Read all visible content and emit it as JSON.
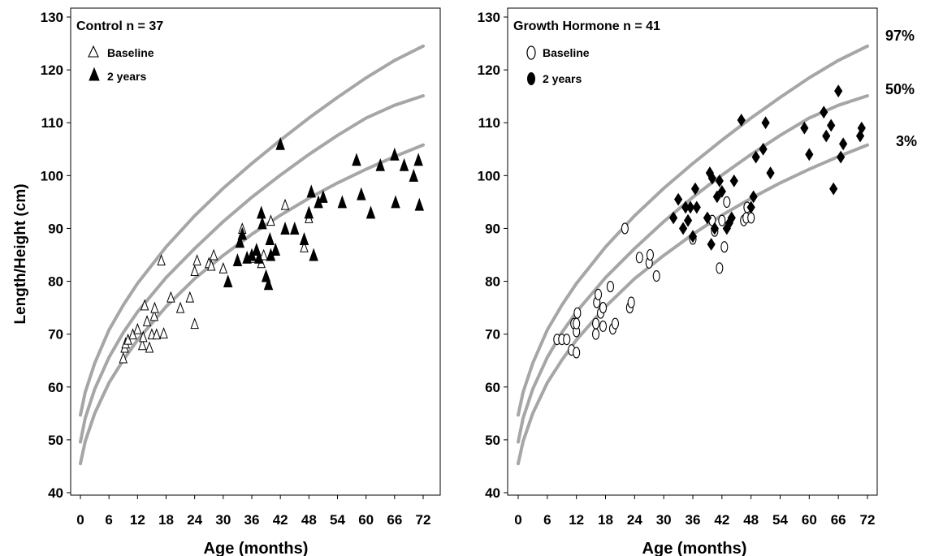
{
  "chart_data": [
    {
      "type": "scatter",
      "title": "Control n = 37",
      "xlabel": "Age (months)",
      "ylabel": "Length/Height (cm)",
      "xlim": [
        0,
        72
      ],
      "ylim": [
        40,
        130
      ],
      "xticks": [
        "0",
        "6",
        "12",
        "18",
        "24",
        "30",
        "36",
        "42",
        "48",
        "54",
        "60",
        "66",
        "72"
      ],
      "yticks": [
        "40",
        "50",
        "60",
        "70",
        "80",
        "90",
        "100",
        "110",
        "120",
        "130"
      ],
      "legend": [
        {
          "label": "Baseline",
          "marker": "open-triangle"
        },
        {
          "label": "2 years",
          "marker": "filled-triangle"
        }
      ],
      "reference_curves": [
        {
          "name": "97%",
          "x": [
            0,
            1,
            3,
            6,
            9,
            12,
            18,
            24,
            30,
            36,
            42,
            48,
            54,
            60,
            66,
            72
          ],
          "y": [
            54.7,
            59.0,
            64.5,
            70.8,
            75.5,
            79.6,
            86.5,
            92.4,
            97.6,
            102.3,
            106.7,
            110.9,
            114.8,
            118.5,
            121.8,
            124.5
          ]
        },
        {
          "name": "50%",
          "x": [
            0,
            1,
            3,
            6,
            9,
            12,
            18,
            24,
            30,
            36,
            42,
            48,
            54,
            60,
            66,
            72
          ],
          "y": [
            49.6,
            54.1,
            59.6,
            65.6,
            70.3,
            74.2,
            80.7,
            86.2,
            91.3,
            95.9,
            100.1,
            104.0,
            107.6,
            110.9,
            113.3,
            115.1
          ]
        },
        {
          "name": "3%",
          "x": [
            0,
            1,
            3,
            6,
            9,
            12,
            18,
            24,
            30,
            36,
            42,
            48,
            54,
            60,
            66,
            72
          ],
          "y": [
            45.5,
            49.7,
            55.0,
            60.8,
            65.1,
            68.9,
            75.2,
            80.5,
            84.9,
            88.9,
            92.5,
            95.7,
            98.6,
            101.2,
            103.6,
            105.8
          ]
        }
      ],
      "series": [
        {
          "name": "Baseline",
          "marker": "open-triangle",
          "points": [
            [
              9,
              65.5
            ],
            [
              9.3,
              67.5
            ],
            [
              9.5,
              68.3
            ],
            [
              10,
              69
            ],
            [
              11,
              70
            ],
            [
              12,
              71
            ],
            [
              13,
              68
            ],
            [
              13.2,
              69.5
            ],
            [
              13.5,
              75.5
            ],
            [
              14,
              72.5
            ],
            [
              14.5,
              67.5
            ],
            [
              15,
              70
            ],
            [
              15.5,
              73.5
            ],
            [
              15.6,
              75
            ],
            [
              16,
              70
            ],
            [
              17,
              84
            ],
            [
              17.5,
              70.2
            ],
            [
              19,
              77
            ],
            [
              21,
              75
            ],
            [
              23,
              77
            ],
            [
              24,
              72
            ],
            [
              24,
              82
            ],
            [
              24.5,
              84
            ],
            [
              27,
              83.5
            ],
            [
              27.5,
              83
            ],
            [
              28,
              85
            ],
            [
              30,
              82.5
            ],
            [
              34,
              90
            ],
            [
              35,
              84.5
            ],
            [
              36,
              84.5
            ],
            [
              38,
              83.5
            ],
            [
              38.5,
              85
            ],
            [
              40,
              91.5
            ],
            [
              41,
              86
            ],
            [
              43,
              94.5
            ],
            [
              47,
              86.5
            ],
            [
              48,
              92
            ]
          ]
        },
        {
          "name": "2 years",
          "marker": "filled-triangle",
          "points": [
            [
              31,
              80
            ],
            [
              33,
              84
            ],
            [
              33.5,
              87.5
            ],
            [
              34,
              89
            ],
            [
              35,
              84.5
            ],
            [
              36,
              85
            ],
            [
              37,
              86
            ],
            [
              37.5,
              84.5
            ],
            [
              38,
              93
            ],
            [
              38.2,
              91
            ],
            [
              39,
              81
            ],
            [
              39.5,
              79.5
            ],
            [
              39.8,
              88
            ],
            [
              40,
              85
            ],
            [
              41,
              86
            ],
            [
              42,
              106
            ],
            [
              43,
              90
            ],
            [
              45,
              90
            ],
            [
              47,
              88
            ],
            [
              48,
              93
            ],
            [
              48.5,
              97
            ],
            [
              49,
              85
            ],
            [
              50,
              95
            ],
            [
              51,
              96
            ],
            [
              55,
              95
            ],
            [
              58,
              103
            ],
            [
              59,
              96.5
            ],
            [
              61,
              93
            ],
            [
              63,
              102
            ],
            [
              66,
              104
            ],
            [
              66.2,
              95
            ],
            [
              68,
              102
            ],
            [
              70,
              100
            ],
            [
              71,
              103
            ],
            [
              71.2,
              94.5
            ]
          ]
        }
      ]
    },
    {
      "type": "scatter",
      "title": "Growth Hormone n = 41",
      "xlabel": "Age (months)",
      "ylabel": "",
      "xlim": [
        0,
        72
      ],
      "ylim": [
        40,
        130
      ],
      "xticks": [
        "0",
        "6",
        "12",
        "18",
        "24",
        "30",
        "36",
        "42",
        "48",
        "54",
        "60",
        "66",
        "72"
      ],
      "yticks": [
        "40",
        "50",
        "60",
        "70",
        "80",
        "90",
        "100",
        "110",
        "120",
        "130"
      ],
      "legend": [
        {
          "label": "Baseline",
          "marker": "open-ellipse"
        },
        {
          "label": "2 years",
          "marker": "filled-diamond"
        }
      ],
      "curve_labels": [
        "97%",
        "50%",
        "3%"
      ],
      "reference_curves": [
        {
          "name": "97%",
          "x": [
            0,
            1,
            3,
            6,
            9,
            12,
            18,
            24,
            30,
            36,
            42,
            48,
            54,
            60,
            66,
            72
          ],
          "y": [
            54.7,
            59.0,
            64.5,
            70.8,
            75.5,
            79.6,
            86.5,
            92.4,
            97.6,
            102.3,
            106.7,
            110.9,
            114.8,
            118.5,
            121.8,
            124.5
          ]
        },
        {
          "name": "50%",
          "x": [
            0,
            1,
            3,
            6,
            9,
            12,
            18,
            24,
            30,
            36,
            42,
            48,
            54,
            60,
            66,
            72
          ],
          "y": [
            49.6,
            54.1,
            59.6,
            65.6,
            70.3,
            74.2,
            80.7,
            86.2,
            91.3,
            95.9,
            100.1,
            104.0,
            107.6,
            110.9,
            113.3,
            115.1
          ]
        },
        {
          "name": "3%",
          "x": [
            0,
            1,
            3,
            6,
            9,
            12,
            18,
            24,
            30,
            36,
            42,
            48,
            54,
            60,
            66,
            72
          ],
          "y": [
            45.5,
            49.7,
            55.0,
            60.8,
            65.1,
            68.9,
            75.2,
            80.5,
            84.9,
            88.9,
            92.5,
            95.7,
            98.6,
            101.2,
            103.6,
            105.8
          ]
        }
      ],
      "series": [
        {
          "name": "Baseline",
          "marker": "open-ellipse",
          "points": [
            [
              8,
              69
            ],
            [
              9,
              69
            ],
            [
              10,
              69
            ],
            [
              11,
              67
            ],
            [
              11.5,
              72
            ],
            [
              12,
              70.5
            ],
            [
              12,
              72
            ],
            [
              12,
              66.5
            ],
            [
              12.2,
              74
            ],
            [
              16,
              72
            ],
            [
              16,
              70
            ],
            [
              16.2,
              76
            ],
            [
              16.5,
              77.5
            ],
            [
              17,
              74
            ],
            [
              17.5,
              75
            ],
            [
              17.5,
              71.5
            ],
            [
              19,
              79
            ],
            [
              19.5,
              71
            ],
            [
              20,
              72
            ],
            [
              22,
              90
            ],
            [
              23,
              75
            ],
            [
              23.3,
              76
            ],
            [
              25,
              84.5
            ],
            [
              27,
              83.5
            ],
            [
              27.2,
              85
            ],
            [
              28.5,
              81
            ],
            [
              36,
              88
            ],
            [
              40,
              91.5
            ],
            [
              40.5,
              89.5
            ],
            [
              41.5,
              82.5
            ],
            [
              42,
              91.5
            ],
            [
              42.5,
              86.5
            ],
            [
              43,
              95
            ],
            [
              46.5,
              91.5
            ],
            [
              47,
              92
            ],
            [
              47.2,
              94
            ],
            [
              48,
              92
            ]
          ]
        },
        {
          "name": "2 years",
          "marker": "filled-diamond",
          "points": [
            [
              32,
              92
            ],
            [
              33,
              95.5
            ],
            [
              34,
              90
            ],
            [
              34.5,
              94
            ],
            [
              35,
              91.5
            ],
            [
              35.5,
              94
            ],
            [
              36,
              88.5
            ],
            [
              36.5,
              97.5
            ],
            [
              36.8,
              94
            ],
            [
              39,
              92
            ],
            [
              39.5,
              100.5
            ],
            [
              39.8,
              87
            ],
            [
              40,
              99.5
            ],
            [
              40.5,
              90
            ],
            [
              41,
              96
            ],
            [
              41.5,
              99
            ],
            [
              42,
              97
            ],
            [
              43,
              90
            ],
            [
              43.5,
              91
            ],
            [
              44,
              92
            ],
            [
              44.5,
              99
            ],
            [
              46,
              110.5
            ],
            [
              48,
              94
            ],
            [
              48.5,
              96
            ],
            [
              49,
              103.5
            ],
            [
              50.5,
              105
            ],
            [
              51,
              110
            ],
            [
              52,
              100.5
            ],
            [
              59,
              109
            ],
            [
              60,
              104
            ],
            [
              63,
              112
            ],
            [
              63.5,
              107.5
            ],
            [
              64.5,
              109.5
            ],
            [
              65,
              97.5
            ],
            [
              66,
              116
            ],
            [
              66.5,
              103.5
            ],
            [
              67,
              106
            ],
            [
              70.5,
              107.5
            ],
            [
              70.8,
              109
            ]
          ]
        }
      ]
    }
  ]
}
